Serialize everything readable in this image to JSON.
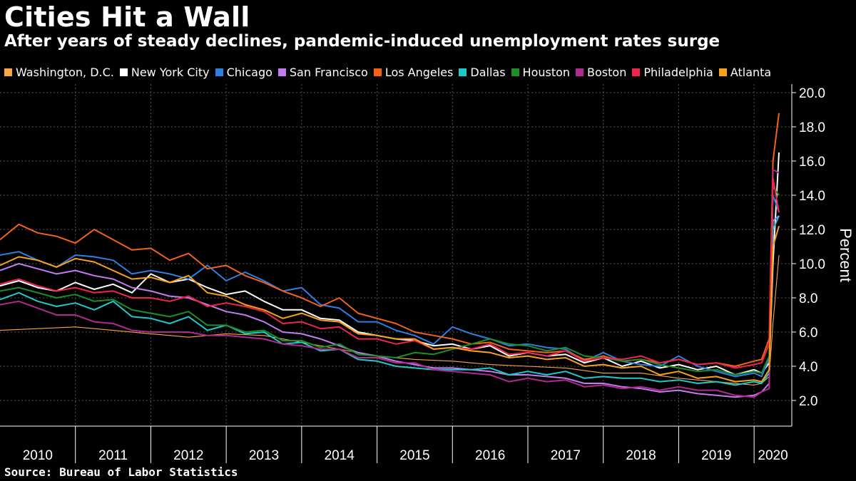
{
  "chart_data": {
    "type": "line",
    "title": "Cities Hit a Wall",
    "subtitle": "After years of steady declines, pandemic-induced unemployment rates surge",
    "source": "Source: Bureau of Labor Statistics",
    "ylabel": "Percent",
    "ylim": [
      0.5,
      20.5
    ],
    "xlim": [
      2010.0,
      2020.5
    ],
    "yticks": [
      "2.0",
      "4.0",
      "6.0",
      "8.0",
      "10.0",
      "12.0",
      "14.0",
      "16.0",
      "18.0",
      "20.0"
    ],
    "ytick_values": [
      2,
      4,
      6,
      8,
      10,
      12,
      14,
      16,
      18,
      20
    ],
    "x_period_labels": [
      "2010",
      "2011",
      "2012",
      "2013",
      "2014",
      "2015",
      "2016",
      "2017",
      "2018",
      "2019",
      "2020"
    ],
    "x_period_starts": [
      2010,
      2011,
      2012,
      2013,
      2014,
      2015,
      2016,
      2017,
      2018,
      2019,
      2020
    ],
    "grid": true,
    "legend_position": "top",
    "y_axis_position": "right",
    "series": [
      {
        "name": "Washington, D.C.",
        "color": "#f9a646",
        "width": 1.1,
        "x": [
          2010.0,
          2010.5,
          2011.0,
          2011.5,
          2012.0,
          2012.5,
          2013.0,
          2013.5,
          2014.0,
          2014.5,
          2015.0,
          2015.5,
          2016.0,
          2016.5,
          2017.0,
          2017.5,
          2018.0,
          2018.5,
          2019.0,
          2019.5,
          2020.0,
          2020.1,
          2020.2,
          2020.25,
          2020.33
        ],
        "y": [
          6.1,
          6.2,
          6.3,
          6.1,
          5.9,
          5.7,
          5.9,
          5.8,
          5.4,
          5.0,
          4.6,
          4.4,
          4.3,
          4.1,
          4.0,
          3.9,
          3.6,
          3.6,
          3.3,
          3.1,
          2.9,
          3.0,
          3.4,
          6.5,
          10.5
        ]
      },
      {
        "name": "New York City",
        "color": "#ffffff",
        "width": 2,
        "x": [
          2010.0,
          2010.25,
          2010.5,
          2010.75,
          2011.0,
          2011.25,
          2011.5,
          2011.75,
          2012.0,
          2012.25,
          2012.5,
          2012.75,
          2013.0,
          2013.25,
          2013.5,
          2013.75,
          2014.0,
          2014.25,
          2014.5,
          2014.75,
          2015.0,
          2015.25,
          2015.5,
          2015.75,
          2016.0,
          2016.25,
          2016.5,
          2016.75,
          2017.0,
          2017.25,
          2017.5,
          2017.75,
          2018.0,
          2018.25,
          2018.5,
          2018.75,
          2019.0,
          2019.25,
          2019.5,
          2019.75,
          2020.0,
          2020.1,
          2020.2,
          2020.25,
          2020.33
        ],
        "y": [
          8.7,
          9.0,
          8.6,
          8.4,
          8.9,
          8.5,
          8.8,
          8.3,
          9.4,
          8.9,
          9.1,
          8.6,
          8.2,
          8.4,
          7.8,
          7.3,
          7.3,
          6.8,
          6.7,
          6.0,
          5.8,
          5.6,
          5.5,
          5.2,
          5.3,
          5.0,
          5.2,
          4.6,
          4.8,
          4.6,
          4.7,
          4.2,
          4.5,
          4.0,
          4.3,
          3.9,
          4.1,
          3.8,
          4.0,
          3.5,
          3.8,
          3.6,
          4.2,
          10.0,
          16.5
        ]
      },
      {
        "name": "Chicago",
        "color": "#2d7fe0",
        "width": 2,
        "x": [
          2010.0,
          2010.25,
          2010.5,
          2010.75,
          2011.0,
          2011.25,
          2011.5,
          2011.75,
          2012.0,
          2012.25,
          2012.5,
          2012.75,
          2013.0,
          2013.25,
          2013.5,
          2013.75,
          2014.0,
          2014.25,
          2014.5,
          2014.75,
          2015.0,
          2015.25,
          2015.5,
          2015.75,
          2016.0,
          2016.25,
          2016.5,
          2016.75,
          2017.0,
          2017.25,
          2017.5,
          2017.75,
          2018.0,
          2018.25,
          2018.5,
          2018.75,
          2019.0,
          2019.25,
          2019.5,
          2019.75,
          2020.0,
          2020.1,
          2020.2,
          2020.25,
          2020.33
        ],
        "y": [
          10.5,
          10.7,
          10.2,
          9.8,
          10.5,
          10.4,
          10.2,
          9.4,
          9.6,
          9.4,
          9.1,
          9.9,
          9.0,
          9.5,
          9.0,
          8.4,
          8.6,
          7.6,
          7.4,
          6.6,
          6.6,
          6.1,
          5.8,
          5.3,
          6.3,
          5.9,
          5.6,
          5.2,
          5.3,
          5.1,
          5.0,
          4.3,
          4.8,
          4.3,
          4.1,
          4.0,
          4.6,
          4.0,
          3.7,
          3.4,
          3.6,
          3.4,
          4.5,
          14.0,
          13.0
        ]
      },
      {
        "name": "San Francisco",
        "color": "#c27bf0",
        "width": 2,
        "x": [
          2010.0,
          2010.25,
          2010.5,
          2010.75,
          2011.0,
          2011.25,
          2011.5,
          2011.75,
          2012.0,
          2012.25,
          2012.5,
          2012.75,
          2013.0,
          2013.25,
          2013.5,
          2013.75,
          2014.0,
          2014.25,
          2014.5,
          2014.75,
          2015.0,
          2015.25,
          2015.5,
          2015.75,
          2016.0,
          2016.25,
          2016.5,
          2016.75,
          2017.0,
          2017.25,
          2017.5,
          2017.75,
          2018.0,
          2018.25,
          2018.5,
          2018.75,
          2019.0,
          2019.25,
          2019.5,
          2019.75,
          2020.0,
          2020.1,
          2020.2,
          2020.25,
          2020.33
        ],
        "y": [
          9.6,
          10.0,
          9.7,
          9.4,
          9.6,
          9.3,
          9.1,
          8.6,
          8.4,
          8.1,
          8.0,
          7.6,
          7.2,
          7.0,
          6.6,
          6.0,
          5.9,
          5.6,
          5.2,
          4.8,
          4.6,
          4.3,
          4.1,
          3.9,
          3.9,
          3.8,
          3.7,
          3.5,
          3.5,
          3.4,
          3.3,
          3.0,
          3.0,
          2.8,
          2.7,
          2.5,
          2.6,
          2.4,
          2.3,
          2.2,
          2.3,
          2.5,
          3.0,
          12.5,
          12.8
        ]
      },
      {
        "name": "Los Angeles",
        "color": "#f26318",
        "width": 2,
        "x": [
          2010.0,
          2010.25,
          2010.5,
          2010.75,
          2011.0,
          2011.25,
          2011.5,
          2011.75,
          2012.0,
          2012.25,
          2012.5,
          2012.75,
          2013.0,
          2013.25,
          2013.5,
          2013.75,
          2014.0,
          2014.25,
          2014.5,
          2014.75,
          2015.0,
          2015.25,
          2015.5,
          2015.75,
          2016.0,
          2016.25,
          2016.5,
          2016.75,
          2017.0,
          2017.25,
          2017.5,
          2017.75,
          2018.0,
          2018.25,
          2018.5,
          2018.75,
          2019.0,
          2019.25,
          2019.5,
          2019.75,
          2020.0,
          2020.1,
          2020.2,
          2020.25,
          2020.33
        ],
        "y": [
          11.4,
          12.3,
          11.8,
          11.6,
          11.2,
          12.0,
          11.4,
          10.8,
          10.9,
          10.2,
          10.6,
          9.7,
          9.9,
          9.3,
          8.9,
          8.4,
          8.0,
          7.5,
          8.0,
          7.1,
          6.8,
          6.5,
          6.0,
          5.8,
          5.6,
          5.3,
          5.4,
          5.0,
          4.9,
          4.8,
          4.9,
          4.4,
          4.6,
          4.3,
          4.4,
          4.2,
          4.4,
          4.1,
          4.2,
          4.0,
          4.3,
          4.4,
          5.6,
          16.0,
          18.8
        ]
      },
      {
        "name": "Dallas",
        "color": "#1ec9c9",
        "width": 2,
        "x": [
          2010.0,
          2010.25,
          2010.5,
          2010.75,
          2011.0,
          2011.25,
          2011.5,
          2011.75,
          2012.0,
          2012.25,
          2012.5,
          2012.75,
          2013.0,
          2013.25,
          2013.5,
          2013.75,
          2014.0,
          2014.25,
          2014.5,
          2014.75,
          2015.0,
          2015.25,
          2015.5,
          2015.75,
          2016.0,
          2016.25,
          2016.5,
          2016.75,
          2017.0,
          2017.25,
          2017.5,
          2017.75,
          2018.0,
          2018.25,
          2018.5,
          2018.75,
          2019.0,
          2019.25,
          2019.5,
          2019.75,
          2020.0,
          2020.1,
          2020.2,
          2020.25,
          2020.33
        ],
        "y": [
          7.9,
          8.3,
          7.8,
          7.5,
          7.7,
          7.3,
          7.8,
          6.9,
          6.8,
          6.5,
          6.9,
          6.1,
          6.4,
          5.9,
          6.0,
          5.3,
          5.4,
          4.9,
          5.0,
          4.4,
          4.3,
          4.0,
          3.9,
          3.8,
          3.8,
          3.8,
          3.9,
          3.5,
          3.7,
          3.5,
          3.7,
          3.3,
          3.4,
          3.3,
          3.3,
          3.1,
          3.2,
          3.0,
          3.1,
          2.9,
          3.1,
          3.0,
          3.6,
          12.0,
          12.8
        ]
      },
      {
        "name": "Houston",
        "color": "#1a8f2a",
        "width": 2,
        "x": [
          2010.0,
          2010.25,
          2010.5,
          2010.75,
          2011.0,
          2011.25,
          2011.5,
          2011.75,
          2012.0,
          2012.25,
          2012.5,
          2012.75,
          2013.0,
          2013.25,
          2013.5,
          2013.75,
          2014.0,
          2014.25,
          2014.5,
          2014.75,
          2015.0,
          2015.25,
          2015.5,
          2015.75,
          2016.0,
          2016.25,
          2016.5,
          2016.75,
          2017.0,
          2017.25,
          2017.5,
          2017.75,
          2018.0,
          2018.25,
          2018.5,
          2018.75,
          2019.0,
          2019.25,
          2019.5,
          2019.75,
          2020.0,
          2020.1,
          2020.2,
          2020.25,
          2020.33
        ],
        "y": [
          8.4,
          8.6,
          8.3,
          8.0,
          8.2,
          7.8,
          7.9,
          7.3,
          7.1,
          6.9,
          7.2,
          6.4,
          6.4,
          6.0,
          6.1,
          5.5,
          5.5,
          5.1,
          5.3,
          4.7,
          4.6,
          4.5,
          4.8,
          4.7,
          5.0,
          5.3,
          5.6,
          5.3,
          5.2,
          4.9,
          5.1,
          4.6,
          4.5,
          4.3,
          4.4,
          4.1,
          3.9,
          3.7,
          3.8,
          3.5,
          3.7,
          3.6,
          4.6,
          14.5,
          14.0
        ]
      },
      {
        "name": "Boston",
        "color": "#b02a8f",
        "width": 2,
        "x": [
          2010.0,
          2010.25,
          2010.5,
          2010.75,
          2011.0,
          2011.25,
          2011.5,
          2011.75,
          2012.0,
          2012.25,
          2012.5,
          2012.75,
          2013.0,
          2013.25,
          2013.5,
          2013.75,
          2014.0,
          2014.25,
          2014.5,
          2014.75,
          2015.0,
          2015.25,
          2015.5,
          2015.75,
          2016.0,
          2016.25,
          2016.5,
          2016.75,
          2017.0,
          2017.25,
          2017.5,
          2017.75,
          2018.0,
          2018.25,
          2018.5,
          2018.75,
          2019.0,
          2019.25,
          2019.5,
          2019.75,
          2020.0,
          2020.1,
          2020.2,
          2020.25,
          2020.33
        ],
        "y": [
          7.6,
          7.8,
          7.4,
          7.0,
          7.0,
          6.6,
          6.5,
          6.1,
          6.0,
          6.0,
          6.0,
          5.8,
          5.8,
          5.7,
          5.6,
          5.3,
          5.2,
          5.0,
          5.0,
          4.5,
          4.5,
          4.2,
          4.2,
          3.8,
          3.7,
          3.6,
          3.5,
          3.1,
          3.3,
          3.1,
          3.2,
          2.8,
          2.9,
          2.7,
          2.8,
          2.6,
          2.8,
          2.6,
          2.6,
          2.3,
          2.2,
          2.5,
          2.7,
          15.5,
          15.3
        ]
      },
      {
        "name": "Philadelphia",
        "color": "#f0244d",
        "width": 2,
        "x": [
          2010.0,
          2010.25,
          2010.5,
          2010.75,
          2011.0,
          2011.25,
          2011.5,
          2011.75,
          2012.0,
          2012.25,
          2012.5,
          2012.75,
          2013.0,
          2013.25,
          2013.5,
          2013.75,
          2014.0,
          2014.25,
          2014.5,
          2014.75,
          2015.0,
          2015.25,
          2015.5,
          2015.75,
          2016.0,
          2016.25,
          2016.5,
          2016.75,
          2017.0,
          2017.25,
          2017.5,
          2017.75,
          2018.0,
          2018.25,
          2018.5,
          2018.75,
          2019.0,
          2019.25,
          2019.5,
          2019.75,
          2020.0,
          2020.1,
          2020.2,
          2020.25,
          2020.33
        ],
        "y": [
          8.8,
          9.1,
          8.7,
          8.4,
          8.6,
          8.3,
          8.4,
          8.0,
          8.0,
          7.8,
          8.1,
          7.5,
          7.7,
          7.5,
          7.2,
          6.5,
          6.6,
          6.2,
          6.3,
          5.6,
          5.6,
          5.3,
          5.5,
          5.0,
          5.1,
          5.0,
          5.3,
          4.7,
          4.8,
          4.6,
          4.9,
          4.3,
          4.5,
          4.4,
          4.6,
          4.2,
          4.4,
          4.1,
          4.2,
          3.9,
          4.1,
          4.2,
          5.3,
          15.0,
          13.0
        ]
      },
      {
        "name": "Atlanta",
        "color": "#f7a21b",
        "width": 2,
        "x": [
          2010.0,
          2010.25,
          2010.5,
          2010.75,
          2011.0,
          2011.25,
          2011.5,
          2011.75,
          2012.0,
          2012.25,
          2012.5,
          2012.75,
          2013.0,
          2013.25,
          2013.5,
          2013.75,
          2014.0,
          2014.25,
          2014.5,
          2014.75,
          2015.0,
          2015.25,
          2015.5,
          2015.75,
          2016.0,
          2016.25,
          2016.5,
          2016.75,
          2017.0,
          2017.25,
          2017.5,
          2017.75,
          2018.0,
          2018.25,
          2018.5,
          2018.75,
          2019.0,
          2019.25,
          2019.5,
          2019.75,
          2020.0,
          2020.1,
          2020.2,
          2020.25,
          2020.33
        ],
        "y": [
          9.9,
          10.4,
          10.2,
          9.8,
          10.3,
          10.1,
          9.6,
          9.1,
          9.2,
          8.9,
          9.3,
          8.3,
          8.1,
          7.6,
          7.3,
          6.8,
          7.1,
          6.7,
          6.6,
          5.9,
          5.8,
          5.6,
          5.6,
          5.0,
          5.1,
          4.9,
          4.8,
          4.5,
          4.6,
          4.4,
          4.5,
          4.0,
          4.1,
          3.9,
          4.0,
          3.5,
          3.7,
          3.3,
          3.4,
          3.1,
          3.2,
          3.1,
          3.8,
          11.0,
          12.2
        ]
      }
    ]
  }
}
